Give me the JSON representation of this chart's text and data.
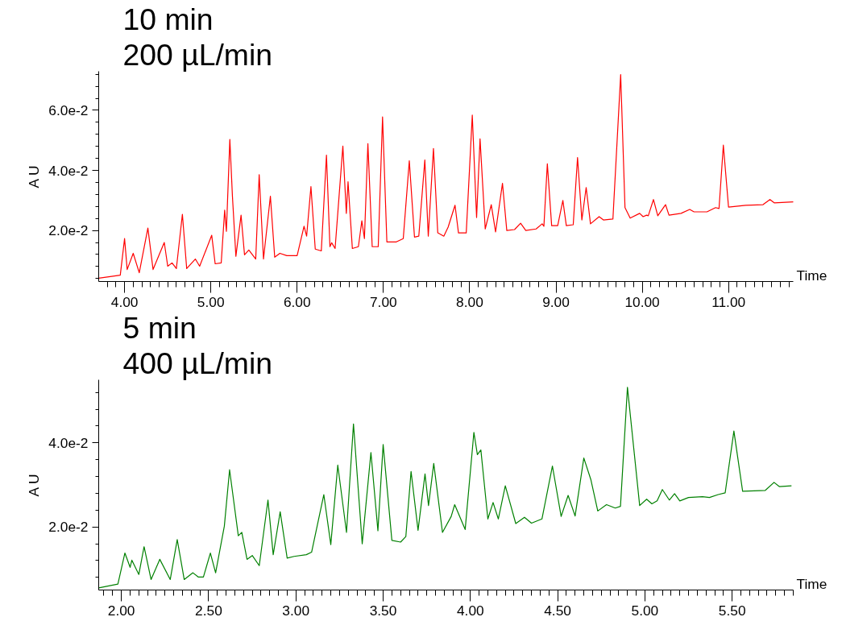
{
  "chart_data": [
    {
      "type": "line",
      "title": "10 min",
      "subtitle": "200 µL/min",
      "xlabel": "Time",
      "ylabel": "A U",
      "grid": false,
      "marker": "none",
      "line_style": "solid",
      "xlim": [
        3.7,
        11.75
      ],
      "ylim": [
        0.003,
        0.073
      ],
      "xticks": [
        {
          "value": 4,
          "label": "4.00"
        },
        {
          "value": 5,
          "label": "5.00"
        },
        {
          "value": 6,
          "label": "6.00"
        },
        {
          "value": 7,
          "label": "7.00"
        },
        {
          "value": 8,
          "label": "8.00"
        },
        {
          "value": 9,
          "label": "9.00"
        },
        {
          "value": 10,
          "label": "10.00"
        },
        {
          "value": 11,
          "label": "11.00"
        }
      ],
      "yticks": [
        {
          "value": 0.02,
          "label": "2.0e-2"
        },
        {
          "value": 0.04,
          "label": "4.0e-2"
        },
        {
          "value": 0.06,
          "label": "6.0e-2"
        }
      ],
      "series": [
        {
          "color": "#ff0000",
          "x": [
            3.7,
            3.95,
            4.0,
            4.03,
            4.1,
            4.17,
            4.27,
            4.33,
            4.46,
            4.5,
            4.55,
            4.6,
            4.67,
            4.72,
            4.82,
            4.87,
            5.01,
            5.05,
            5.12,
            5.16,
            5.18,
            5.22,
            5.25,
            5.29,
            5.35,
            5.39,
            5.44,
            5.52,
            5.56,
            5.61,
            5.69,
            5.74,
            5.8,
            5.88,
            6.0,
            6.08,
            6.11,
            6.16,
            6.21,
            6.28,
            6.34,
            6.38,
            6.4,
            6.44,
            6.53,
            6.57,
            6.59,
            6.64,
            6.71,
            6.75,
            6.78,
            6.82,
            6.87,
            6.94,
            6.99,
            7.04,
            7.15,
            7.23,
            7.3,
            7.36,
            7.41,
            7.48,
            7.52,
            7.58,
            7.63,
            7.7,
            7.75,
            7.83,
            7.87,
            7.96,
            8.03,
            8.08,
            8.12,
            8.18,
            8.25,
            8.3,
            8.38,
            8.43,
            8.52,
            8.59,
            8.65,
            8.77,
            8.84,
            8.86,
            8.9,
            8.95,
            9.02,
            9.08,
            9.12,
            9.2,
            9.25,
            9.3,
            9.35,
            9.4,
            9.5,
            9.55,
            9.66,
            9.75,
            9.8,
            9.86,
            9.97,
            10.01,
            10.05,
            10.07,
            10.13,
            10.18,
            10.27,
            10.31,
            10.45,
            10.55,
            10.6,
            10.75,
            10.85,
            10.89,
            10.94,
            11.0,
            11.2,
            11.4,
            11.48,
            11.53,
            11.75
          ],
          "values": [
            0.0041,
            0.0051,
            0.0173,
            0.007,
            0.0124,
            0.0059,
            0.0208,
            0.007,
            0.016,
            0.0081,
            0.0092,
            0.0073,
            0.0254,
            0.0073,
            0.0105,
            0.0081,
            0.0184,
            0.0089,
            0.0092,
            0.0268,
            0.0197,
            0.0503,
            0.0314,
            0.0114,
            0.0251,
            0.0119,
            0.0135,
            0.0105,
            0.0386,
            0.0105,
            0.0314,
            0.0111,
            0.0124,
            0.0116,
            0.0116,
            0.0214,
            0.0181,
            0.0346,
            0.0138,
            0.0132,
            0.0451,
            0.0146,
            0.0159,
            0.014,
            0.0481,
            0.0257,
            0.0362,
            0.014,
            0.0146,
            0.0232,
            0.0173,
            0.0489,
            0.0146,
            0.0146,
            0.0578,
            0.0162,
            0.0162,
            0.0173,
            0.0432,
            0.0178,
            0.0181,
            0.0435,
            0.0181,
            0.0473,
            0.0192,
            0.0181,
            0.0211,
            0.0284,
            0.0192,
            0.0192,
            0.0584,
            0.0243,
            0.0505,
            0.0205,
            0.0286,
            0.0195,
            0.0357,
            0.02,
            0.0203,
            0.0224,
            0.02,
            0.0205,
            0.0222,
            0.0214,
            0.0422,
            0.0216,
            0.0216,
            0.03,
            0.0216,
            0.0219,
            0.0443,
            0.0235,
            0.0343,
            0.0222,
            0.0246,
            0.0235,
            0.0238,
            0.0719,
            0.0276,
            0.0241,
            0.0257,
            0.0246,
            0.0251,
            0.0249,
            0.0303,
            0.0249,
            0.0286,
            0.0251,
            0.0257,
            0.027,
            0.0262,
            0.0262,
            0.0276,
            0.0273,
            0.0484,
            0.0278,
            0.0284,
            0.0286,
            0.0303,
            0.0292,
            0.0295
          ]
        }
      ]
    },
    {
      "type": "line",
      "title": "5 min",
      "subtitle": "400 µL/min",
      "xlabel": "Time",
      "ylabel": "A U",
      "grid": false,
      "marker": "none",
      "line_style": "solid",
      "xlim": [
        1.87,
        5.85
      ],
      "ylim": [
        0.005,
        0.055
      ],
      "xticks": [
        {
          "value": 2,
          "label": "2.00"
        },
        {
          "value": 2.5,
          "label": "2.50"
        },
        {
          "value": 3,
          "label": "3.00"
        },
        {
          "value": 3.5,
          "label": "3.50"
        },
        {
          "value": 4,
          "label": "4.00"
        },
        {
          "value": 4.5,
          "label": "4.50"
        },
        {
          "value": 5,
          "label": "5.00"
        },
        {
          "value": 5.5,
          "label": "5.50"
        }
      ],
      "yticks": [
        {
          "value": 0.02,
          "label": "2.0e-2"
        },
        {
          "value": 0.04,
          "label": "4.0e-2"
        }
      ],
      "series": [
        {
          "color": "#008000",
          "x": [
            1.87,
            1.98,
            2.02,
            2.05,
            2.06,
            2.1,
            2.13,
            2.17,
            2.22,
            2.28,
            2.32,
            2.36,
            2.41,
            2.44,
            2.47,
            2.51,
            2.54,
            2.59,
            2.62,
            2.67,
            2.69,
            2.72,
            2.75,
            2.79,
            2.84,
            2.87,
            2.91,
            2.95,
            2.99,
            3.06,
            3.09,
            3.16,
            3.2,
            3.24,
            3.29,
            3.33,
            3.38,
            3.43,
            3.47,
            3.5,
            3.55,
            3.6,
            3.63,
            3.66,
            3.7,
            3.74,
            3.76,
            3.79,
            3.84,
            3.89,
            3.91,
            3.97,
            4.02,
            4.04,
            4.06,
            4.1,
            4.13,
            4.16,
            4.2,
            4.26,
            4.31,
            4.35,
            4.41,
            4.47,
            4.52,
            4.56,
            4.6,
            4.65,
            4.69,
            4.73,
            4.78,
            4.83,
            4.86,
            4.9,
            4.97,
            5.01,
            5.04,
            5.07,
            5.1,
            5.14,
            5.17,
            5.2,
            5.25,
            5.33,
            5.37,
            5.42,
            5.46,
            5.51,
            5.56,
            5.69,
            5.74,
            5.77,
            5.84
          ],
          "values": [
            0.0055,
            0.0064,
            0.0138,
            0.0104,
            0.0121,
            0.0087,
            0.0153,
            0.0075,
            0.0123,
            0.0075,
            0.017,
            0.0075,
            0.0091,
            0.0081,
            0.0081,
            0.0138,
            0.0091,
            0.0202,
            0.0336,
            0.0179,
            0.0187,
            0.0123,
            0.0132,
            0.0108,
            0.0264,
            0.0134,
            0.0236,
            0.0126,
            0.013,
            0.0134,
            0.014,
            0.0277,
            0.0158,
            0.0347,
            0.0187,
            0.0445,
            0.016,
            0.0377,
            0.0191,
            0.0396,
            0.0168,
            0.0164,
            0.0177,
            0.0332,
            0.0192,
            0.0326,
            0.0251,
            0.0351,
            0.0187,
            0.0225,
            0.0253,
            0.0194,
            0.0425,
            0.0372,
            0.0383,
            0.0219,
            0.0258,
            0.0219,
            0.0298,
            0.0208,
            0.0223,
            0.0209,
            0.0219,
            0.0345,
            0.0225,
            0.0275,
            0.0226,
            0.0364,
            0.0313,
            0.0238,
            0.0253,
            0.0245,
            0.0249,
            0.0532,
            0.0251,
            0.0266,
            0.0255,
            0.0262,
            0.0289,
            0.0264,
            0.0279,
            0.0262,
            0.027,
            0.0272,
            0.027,
            0.0277,
            0.0281,
            0.0428,
            0.0285,
            0.0287,
            0.0306,
            0.0296,
            0.0298
          ]
        }
      ]
    }
  ]
}
